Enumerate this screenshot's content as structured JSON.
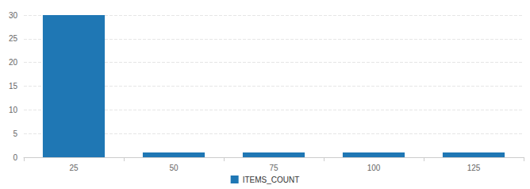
{
  "chart_data": {
    "type": "bar",
    "categories": [
      "25",
      "50",
      "75",
      "100",
      "125"
    ],
    "series": [
      {
        "name": "ITEMS_COUNT",
        "color": "#1f77b4",
        "values": [
          30,
          1,
          1,
          1,
          1
        ]
      }
    ],
    "ylim": [
      0,
      30
    ],
    "yticks": [
      0,
      5,
      10,
      15,
      20,
      25,
      30
    ],
    "grid": true,
    "legend": "bottom"
  }
}
